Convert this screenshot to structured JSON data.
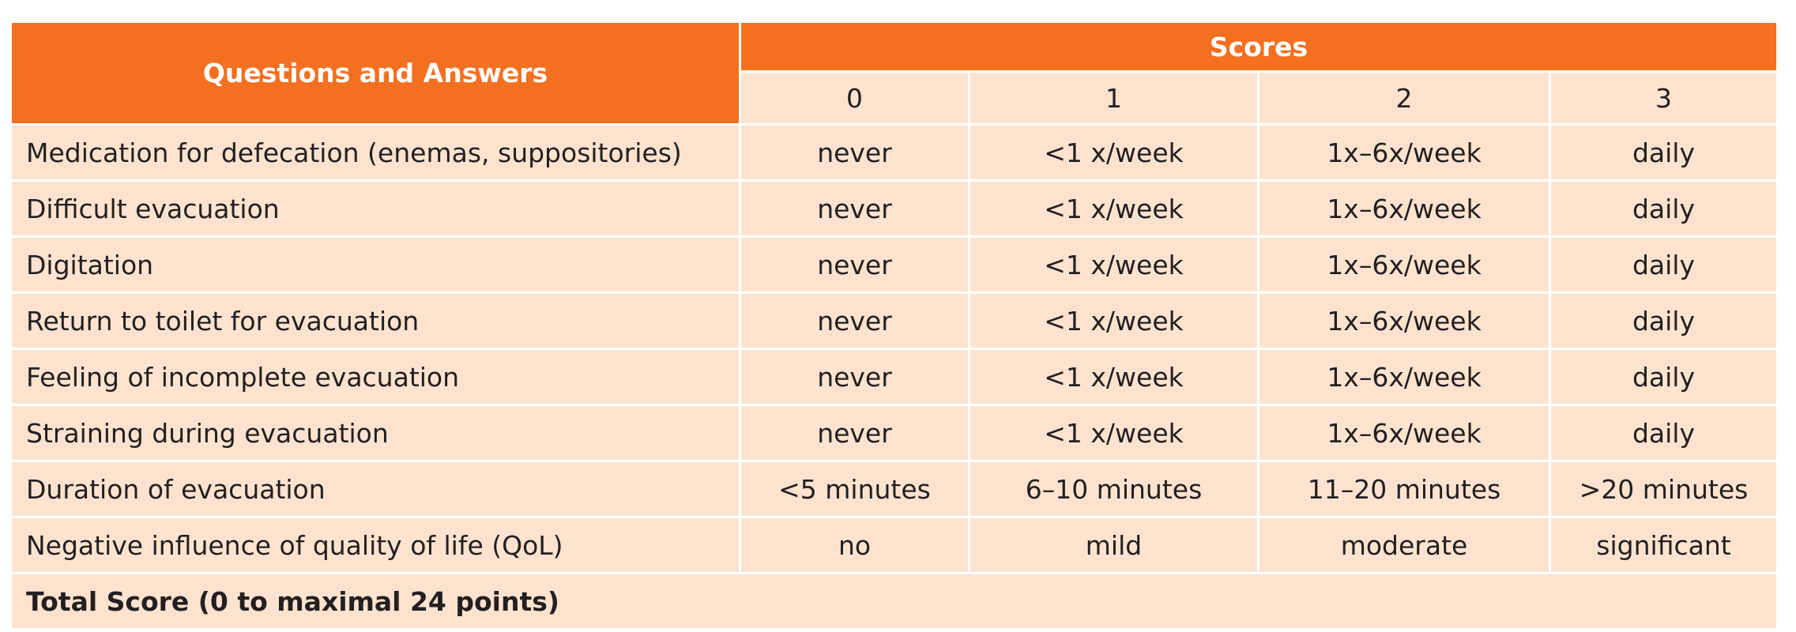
{
  "header": {
    "title": "Questions and Answers",
    "scores": "Scores",
    "score_levels": [
      0,
      1,
      2,
      3
    ]
  },
  "rows": [
    {
      "question": "Medication for defecation (enemas, suppositories)",
      "answers": [
        "never",
        "<1 x/week",
        "1x–6x/week",
        "daily"
      ]
    },
    {
      "question": "Difficult evacuation",
      "answers": [
        "never",
        "<1 x/week",
        "1x–6x/week",
        "daily"
      ]
    },
    {
      "question": "Digitation",
      "answers": [
        "never",
        "<1 x/week",
        "1x–6x/week",
        "daily"
      ]
    },
    {
      "question": "Return to toilet for evacuation",
      "answers": [
        "never",
        "<1 x/week",
        "1x–6x/week",
        "daily"
      ]
    },
    {
      "question": "Feeling of incomplete evacuation",
      "answers": [
        "never",
        "<1 x/week",
        "1x–6x/week",
        "daily"
      ]
    },
    {
      "question": "Straining during evacuation",
      "answers": [
        "never",
        "<1 x/week",
        "1x–6x/week",
        "daily"
      ]
    },
    {
      "question": "Duration of evacuation",
      "answers": [
        "<5 minutes",
        "6–10 minutes",
        "11–20 minutes",
        ">20 minutes"
      ]
    },
    {
      "question": "Negative influence of quality of life (QoL)",
      "answers": [
        "no",
        "mild",
        "moderate",
        "significant"
      ]
    }
  ],
  "total": "Total Score (0 to maximal 24 points)"
}
